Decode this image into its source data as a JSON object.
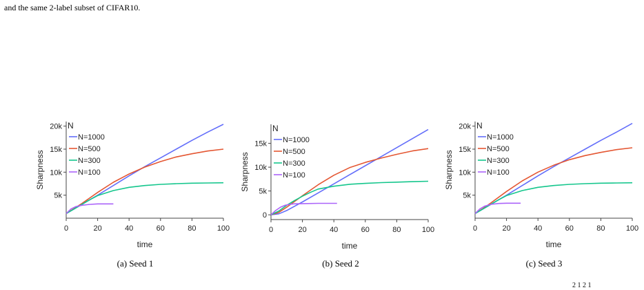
{
  "page": {
    "caption_line1": "",
    "caption_line2": "and the same 2-label subset of CIFAR10.",
    "caption_bottom_fragment": "2 1 2 1"
  },
  "chart_data": [
    {
      "type": "line",
      "subcaption": "(a) Seed 1",
      "xlabel": "time",
      "ylabel": "Sharpness",
      "xlim": [
        0,
        100
      ],
      "ylim": [
        0,
        21000
      ],
      "xticks": [
        0,
        20,
        40,
        60,
        80,
        100
      ],
      "yticks": [
        5000,
        10000,
        15000,
        20000
      ],
      "ytick_labels": [
        "5k",
        "10k",
        "15k",
        "20k"
      ],
      "legend_title": "N",
      "legend_position": "top-left",
      "grid": false,
      "series": [
        {
          "name": "N=1000",
          "color": "#636efa",
          "x": [
            0,
            10,
            20,
            30,
            40,
            50,
            60,
            70,
            80,
            90,
            100
          ],
          "y": [
            1000,
            3000,
            5000,
            7100,
            9200,
            11200,
            13100,
            15000,
            16900,
            18700,
            20400
          ]
        },
        {
          "name": "N=500",
          "color": "#e45632",
          "x": [
            0,
            5,
            10,
            20,
            30,
            40,
            50,
            60,
            70,
            80,
            90,
            100
          ],
          "y": [
            1000,
            2100,
            3200,
            5600,
            7800,
            9600,
            11100,
            12300,
            13300,
            14000,
            14600,
            15000
          ]
        },
        {
          "name": "N=300",
          "color": "#14c68c",
          "x": [
            0,
            5,
            10,
            15,
            20,
            30,
            40,
            50,
            60,
            70,
            80,
            90,
            100
          ],
          "y": [
            1000,
            2000,
            3000,
            4000,
            4900,
            6000,
            6700,
            7100,
            7350,
            7500,
            7600,
            7650,
            7700
          ]
        },
        {
          "name": "N=100",
          "color": "#ab63fa",
          "x": [
            0,
            3,
            6,
            10,
            15,
            20,
            25,
            30
          ],
          "y": [
            1000,
            2000,
            2500,
            2800,
            3000,
            3100,
            3100,
            3100
          ]
        }
      ]
    },
    {
      "type": "line",
      "subcaption": "(b) Seed 2",
      "xlabel": "time",
      "ylabel": "Sharpness",
      "xlim": [
        0,
        100
      ],
      "ylim": [
        -1000,
        19000
      ],
      "xticks": [
        0,
        20,
        40,
        60,
        80,
        100
      ],
      "yticks": [
        0,
        5000,
        10000,
        15000
      ],
      "ytick_labels": [
        "0",
        "5k",
        "10k",
        "15k"
      ],
      "legend_title": "N",
      "legend_position": "top-left",
      "grid": false,
      "series": [
        {
          "name": "N=1000",
          "color": "#636efa",
          "x": [
            0,
            5,
            10,
            20,
            30,
            40,
            50,
            60,
            70,
            80,
            90,
            100
          ],
          "y": [
            0,
            200,
            900,
            2700,
            4600,
            6500,
            8400,
            10300,
            12200,
            14100,
            16000,
            17900
          ]
        },
        {
          "name": "N=500",
          "color": "#e45632",
          "x": [
            0,
            5,
            10,
            20,
            30,
            40,
            50,
            60,
            70,
            80,
            90,
            100
          ],
          "y": [
            0,
            500,
            1600,
            4000,
            6300,
            8300,
            9900,
            11000,
            11900,
            12700,
            13400,
            13900
          ]
        },
        {
          "name": "N=300",
          "color": "#14c68c",
          "x": [
            0,
            5,
            10,
            15,
            20,
            25,
            30,
            40,
            50,
            60,
            70,
            80,
            90,
            100
          ],
          "y": [
            0,
            800,
            2000,
            3000,
            3900,
            4700,
            5400,
            6000,
            6400,
            6600,
            6750,
            6850,
            6950,
            7050
          ]
        },
        {
          "name": "N=100",
          "color": "#ab63fa",
          "x": [
            0,
            3,
            6,
            9,
            12,
            15,
            20,
            30,
            42
          ],
          "y": [
            0,
            900,
            1600,
            2000,
            2200,
            2300,
            2350,
            2400,
            2400
          ]
        }
      ]
    },
    {
      "type": "line",
      "subcaption": "(c) Seed 3",
      "xlabel": "time",
      "ylabel": "Sharpness",
      "xlim": [
        0,
        100
      ],
      "ylim": [
        0,
        21000
      ],
      "xticks": [
        0,
        20,
        40,
        60,
        80,
        100
      ],
      "yticks": [
        5000,
        10000,
        15000,
        20000
      ],
      "ytick_labels": [
        "5k",
        "10k",
        "15k",
        "20k"
      ],
      "legend_title": "N",
      "legend_position": "top-left",
      "grid": false,
      "series": [
        {
          "name": "N=1000",
          "color": "#636efa",
          "x": [
            0,
            10,
            20,
            30,
            40,
            50,
            60,
            70,
            80,
            90,
            100
          ],
          "y": [
            1000,
            3000,
            5000,
            7100,
            9200,
            11200,
            13100,
            15000,
            16900,
            18700,
            20600
          ]
        },
        {
          "name": "N=500",
          "color": "#e45632",
          "x": [
            0,
            5,
            10,
            20,
            30,
            40,
            50,
            60,
            70,
            80,
            90,
            100
          ],
          "y": [
            1000,
            2100,
            3300,
            5800,
            8100,
            10000,
            11500,
            12700,
            13600,
            14300,
            14900,
            15300
          ]
        },
        {
          "name": "N=300",
          "color": "#14c68c",
          "x": [
            0,
            5,
            10,
            15,
            20,
            30,
            40,
            50,
            60,
            70,
            80,
            90,
            100
          ],
          "y": [
            1000,
            2000,
            3000,
            4000,
            4900,
            6000,
            6700,
            7100,
            7350,
            7500,
            7600,
            7650,
            7700
          ]
        },
        {
          "name": "N=100",
          "color": "#ab63fa",
          "x": [
            0,
            3,
            6,
            10,
            15,
            20,
            25,
            29
          ],
          "y": [
            1000,
            2000,
            2600,
            3000,
            3200,
            3250,
            3250,
            3250
          ]
        }
      ]
    }
  ]
}
